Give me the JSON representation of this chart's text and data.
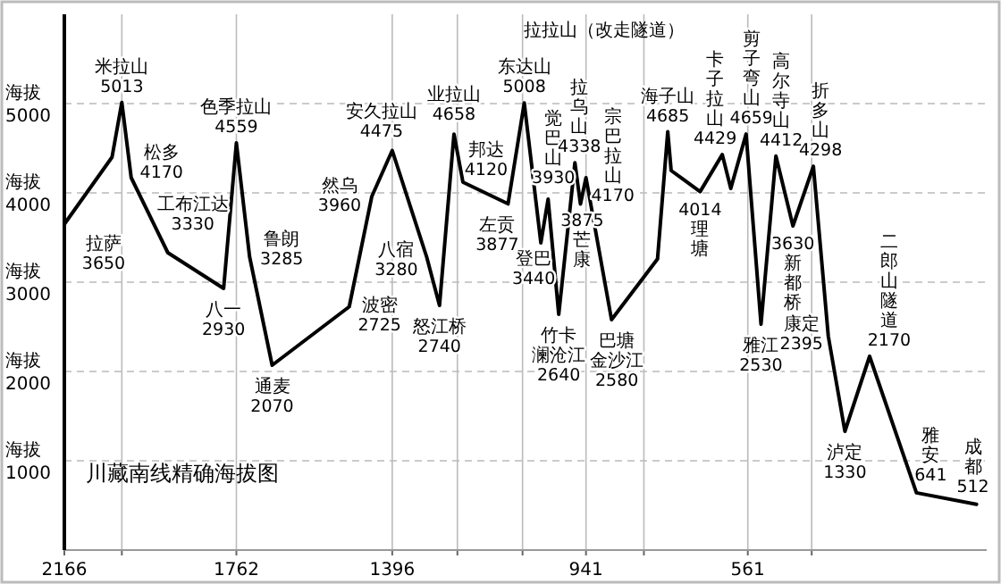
{
  "chart_data": {
    "type": "line",
    "title": "川藏南线精确海拔图",
    "color": "#000000",
    "marker": "none",
    "line_style": "solid",
    "grid": true,
    "ylabel": "海拔",
    "xlim": [
      2166,
      0
    ],
    "ylim": [
      0,
      6000
    ],
    "xticks": [
      2166,
      {
        "value": 2031,
        "label": null
      },
      1762,
      1396,
      {
        "value": 1243,
        "label": null
      },
      {
        "value": 1090,
        "label": null
      },
      941,
      {
        "value": 805,
        "label": null
      },
      561,
      {
        "value": 411,
        "label": null
      }
    ],
    "yticks": [
      1000,
      2000,
      3000,
      4000,
      5000
    ],
    "x": [
      2166,
      2054,
      2031,
      2009,
      1923,
      1792,
      1762,
      1731,
      1678,
      1497,
      1444,
      1396,
      1315,
      1285,
      1251,
      1230,
      1124,
      1086,
      1047,
      1030,
      1005,
      967,
      954,
      941,
      881,
      773,
      749,
      741,
      673,
      621,
      601,
      565,
      530,
      495,
      455,
      407,
      372,
      333,
      275,
      165,
      24
    ],
    "values": [
      3650,
      4400,
      5013,
      4170,
      3330,
      2930,
      4559,
      3285,
      2070,
      2725,
      3960,
      4475,
      3280,
      2740,
      4658,
      4120,
      3877,
      5008,
      3440,
      3930,
      2640,
      4338,
      3875,
      4170,
      2580,
      3260,
      4685,
      4250,
      4014,
      4429,
      4050,
      4659,
      2530,
      4412,
      3630,
      4298,
      2395,
      1330,
      2170,
      641,
      512
    ],
    "value_labels": [
      "3650",
      null,
      "5013",
      "4170",
      "3330",
      "2930",
      "4559",
      "3285",
      "2070",
      "2725",
      "3960",
      "4475",
      "3280",
      "2740",
      "4658",
      "4120",
      "3877",
      "5008",
      "3440",
      "3930",
      "2640",
      "4338",
      "3875",
      "4170",
      "2580",
      null,
      "4685",
      null,
      "4014",
      "4429",
      null,
      "4659",
      "2530",
      "4412",
      "3630",
      "4298",
      "2395",
      "1330",
      "2170",
      "641",
      "512"
    ],
    "annotations": [
      {
        "text": "拉萨",
        "x": 2166,
        "y": 3650
      },
      {
        "text": "米拉山",
        "x": 2031,
        "y": 5013
      },
      {
        "text": "松多",
        "x": 2009,
        "y": 4170
      },
      {
        "text": "工布江达",
        "x": 1923,
        "y": 3330
      },
      {
        "text": "八一",
        "x": 1792,
        "y": 2930
      },
      {
        "text": "色季拉山",
        "x": 1762,
        "y": 4559
      },
      {
        "text": "鲁朗",
        "x": 1731,
        "y": 3285
      },
      {
        "text": "通麦",
        "x": 1678,
        "y": 2070
      },
      {
        "text": "波密",
        "x": 1497,
        "y": 2725
      },
      {
        "text": "然乌",
        "x": 1444,
        "y": 3960
      },
      {
        "text": "安久拉山",
        "x": 1396,
        "y": 4475
      },
      {
        "text": "八宿",
        "x": 1315,
        "y": 3280
      },
      {
        "text": "怒江桥",
        "x": 1285,
        "y": 2740
      },
      {
        "text": "业拉山",
        "x": 1251,
        "y": 4658
      },
      {
        "text": "邦达",
        "x": 1230,
        "y": 4120
      },
      {
        "text": "左贡",
        "x": 1124,
        "y": 3877
      },
      {
        "text": "东达山",
        "x": 1086,
        "y": 5008
      },
      {
        "text": "登巴",
        "x": 1047,
        "y": 3440
      },
      {
        "text": "觉巴山",
        "x": 1030,
        "y": 3930
      },
      {
        "text": "竹卡",
        "x": 1005,
        "y": 2640
      },
      {
        "text": "澜沧江",
        "x": 1005,
        "y": 2640
      },
      {
        "text": "拉乌山",
        "x": 967,
        "y": 4338
      },
      {
        "text": "芒康",
        "x": 954,
        "y": 3875
      },
      {
        "text": "宗巴拉山",
        "x": 941,
        "y": 4170
      },
      {
        "text": "巴塘",
        "x": 881,
        "y": 2580
      },
      {
        "text": "金沙江",
        "x": 881,
        "y": 2580
      },
      "拉拉山（改走隧道）",
      {
        "text": "海子山",
        "x": 749,
        "y": 4685
      },
      {
        "text": "理塘",
        "x": 673,
        "y": 4014
      },
      {
        "text": "卡子拉山",
        "x": 621,
        "y": 4429
      },
      {
        "text": "剪子弯山",
        "x": 565,
        "y": 4659
      },
      {
        "text": "雅江",
        "x": 530,
        "y": 2530
      },
      {
        "text": "高尔寺山",
        "x": 495,
        "y": 4412
      },
      {
        "text": "新都桥",
        "x": 455,
        "y": 3630
      },
      {
        "text": "折多山",
        "x": 407,
        "y": 4298
      },
      {
        "text": "康定",
        "x": 372,
        "y": 2395
      },
      {
        "text": "泸定",
        "x": 333,
        "y": 1330
      },
      {
        "text": "二郎山隧道",
        "x": 275,
        "y": 2170
      },
      {
        "text": "雅安",
        "x": 165,
        "y": 641
      },
      {
        "text": "成都",
        "x": 24,
        "y": 512
      }
    ]
  }
}
